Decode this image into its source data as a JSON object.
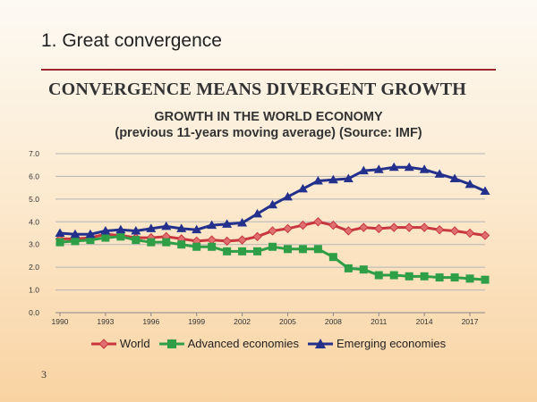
{
  "slide": {
    "title": "1. Great convergence",
    "headline": "CONVERGENCE MEANS DIVERGENT GROWTH",
    "page_number": "3"
  },
  "colors": {
    "world": "#c8373d",
    "advanced": "#2e9e47",
    "emerging": "#23308c",
    "rule": "#9b2630"
  },
  "chart_data": {
    "type": "line",
    "title": "GROWTH IN THE WORLD ECONOMY",
    "subtitle": "(previous 11-years moving average) (Source: IMF)",
    "xlabel": "",
    "ylabel": "",
    "x": [
      1990,
      1991,
      1992,
      1993,
      1994,
      1995,
      1996,
      1997,
      1998,
      1999,
      2000,
      2001,
      2002,
      2003,
      2004,
      2005,
      2006,
      2007,
      2008,
      2009,
      2010,
      2011,
      2012,
      2013,
      2014,
      2015,
      2016,
      2017,
      2018
    ],
    "xticks": [
      "1990",
      "1993",
      "1996",
      "1999",
      "2002",
      "2005",
      "2008",
      "2011",
      "2014",
      "2017"
    ],
    "yticks": [
      "0.0",
      "1.0",
      "2.0",
      "3.0",
      "4.0",
      "5.0",
      "6.0",
      "7.0"
    ],
    "ylim": [
      0,
      7
    ],
    "grid": true,
    "legend": "bottom",
    "series": [
      {
        "name": "World",
        "marker": "diamond",
        "values": [
          3.25,
          3.25,
          3.3,
          3.45,
          3.4,
          3.3,
          3.3,
          3.35,
          3.25,
          3.15,
          3.2,
          3.15,
          3.2,
          3.35,
          3.6,
          3.7,
          3.85,
          4.0,
          3.85,
          3.6,
          3.75,
          3.7,
          3.75,
          3.75,
          3.75,
          3.65,
          3.6,
          3.5,
          3.4
        ]
      },
      {
        "name": "Advanced economies",
        "marker": "square",
        "values": [
          3.1,
          3.15,
          3.2,
          3.3,
          3.35,
          3.2,
          3.1,
          3.1,
          3.0,
          2.9,
          2.9,
          2.7,
          2.7,
          2.7,
          2.9,
          2.8,
          2.8,
          2.8,
          2.45,
          1.95,
          1.9,
          1.65,
          1.65,
          1.6,
          1.6,
          1.55,
          1.55,
          1.5,
          1.45
        ]
      },
      {
        "name": "Emerging economies",
        "marker": "triangle",
        "values": [
          3.5,
          3.45,
          3.45,
          3.6,
          3.65,
          3.6,
          3.7,
          3.8,
          3.7,
          3.65,
          3.85,
          3.9,
          3.95,
          4.35,
          4.75,
          5.1,
          5.45,
          5.8,
          5.85,
          5.9,
          6.25,
          6.3,
          6.4,
          6.4,
          6.3,
          6.1,
          5.9,
          5.65,
          5.35
        ]
      }
    ]
  }
}
